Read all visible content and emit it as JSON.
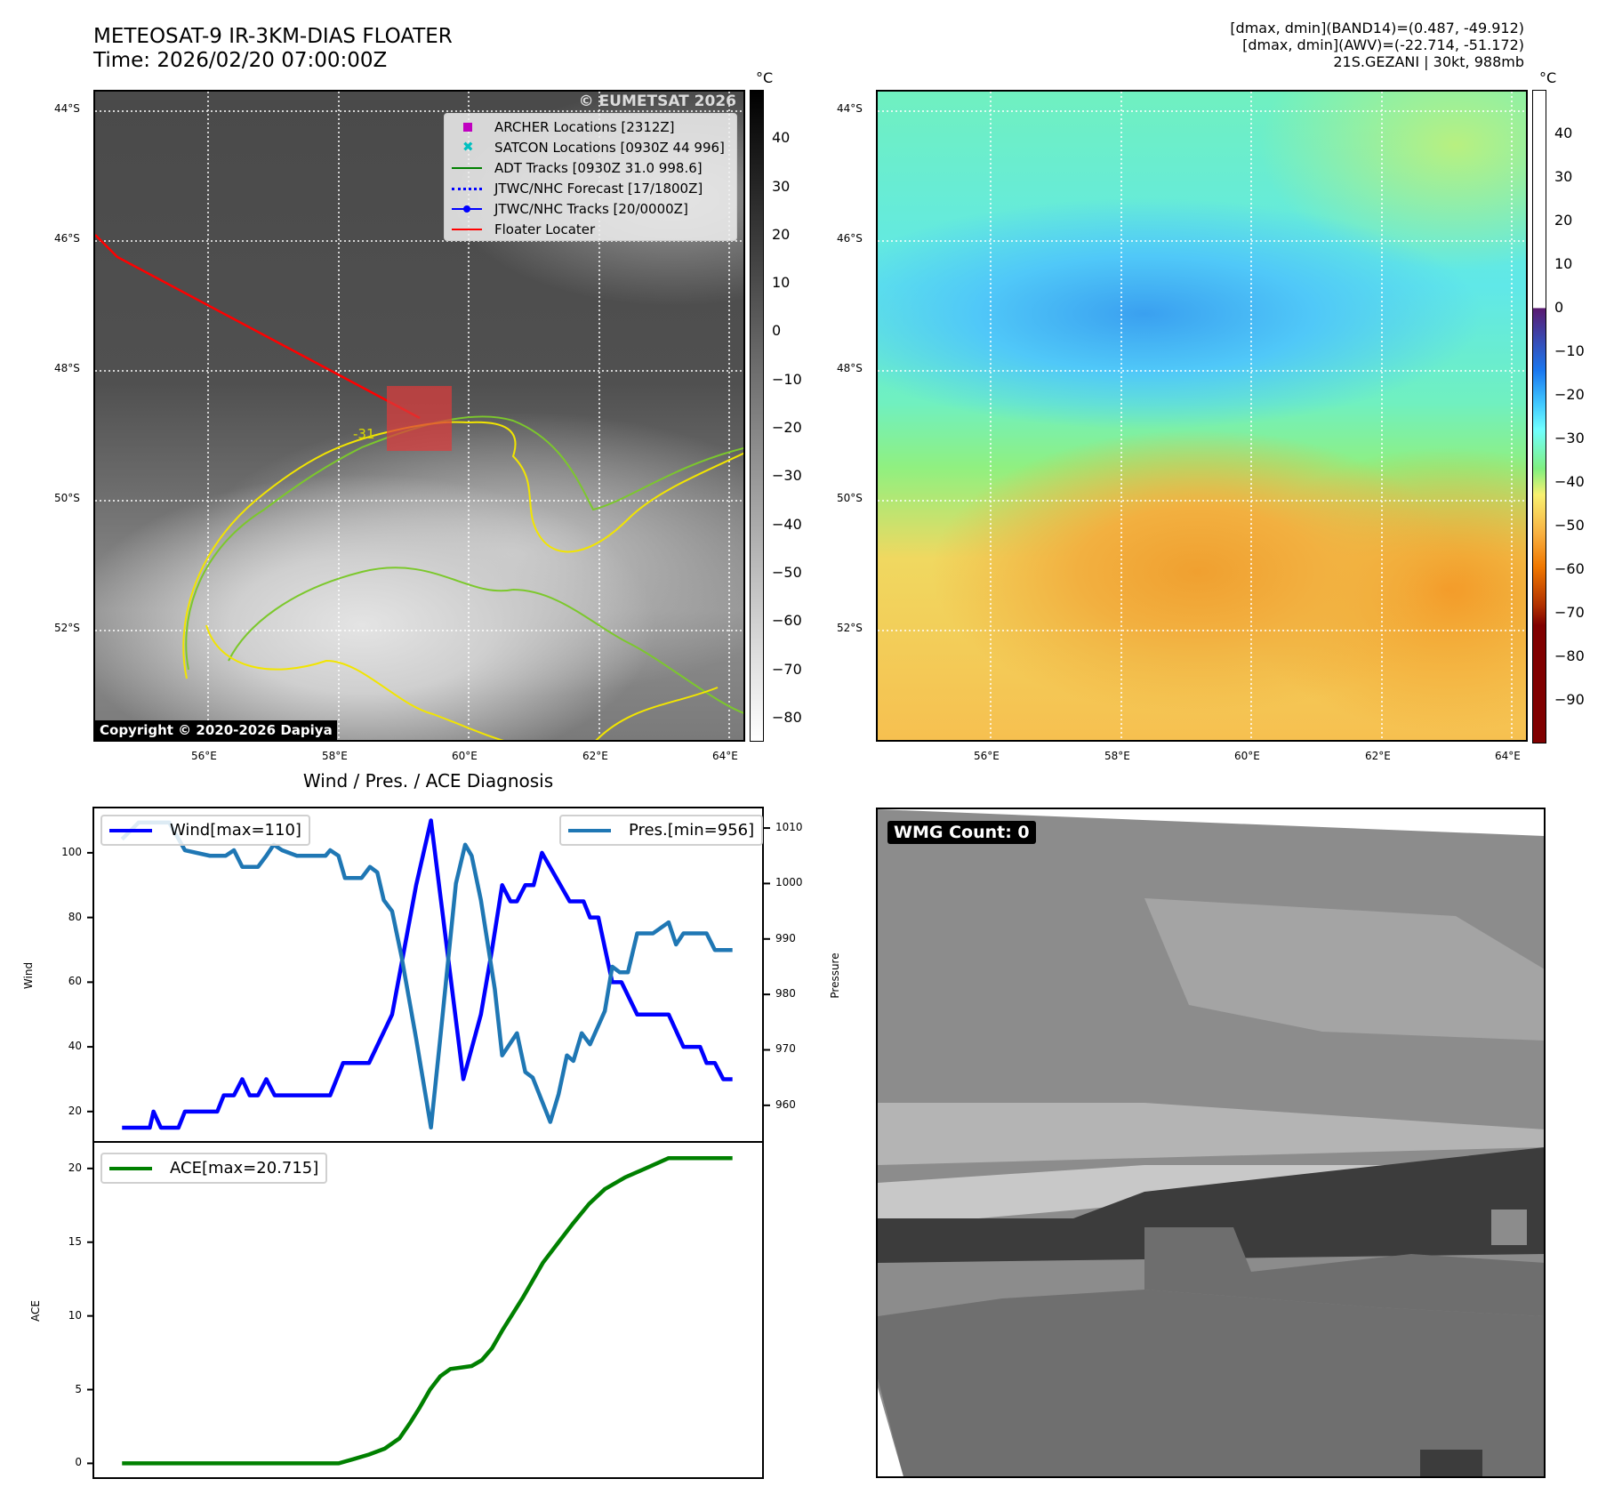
{
  "header": {
    "title": "METEOSAT-9 IR-3KM-DIAS FLOATER",
    "time": "Time: 2026/02/20 07:00:00Z",
    "band14_range": "[dmax, dmin](BAND14)=(0.487, -49.912)",
    "awv_range": "[dmax, dmin](AWV)=(-22.714, -51.172)",
    "storm": "21S.GEZANI | 30kt, 988mb"
  },
  "ir_map": {
    "lat_labels": [
      "44°S",
      "46°S",
      "48°S",
      "50°S",
      "52°S"
    ],
    "lon_labels": [
      "56°E",
      "58°E",
      "60°E",
      "62°E",
      "64°E"
    ],
    "contour_label": "-31",
    "watermark": "© EUMETSAT 2026",
    "copyright": "Copyright © 2020-2026 Dapiya",
    "legend": [
      {
        "label": "ARCHER Locations [2312Z]",
        "color": "#c000c0",
        "symbol": "square"
      },
      {
        "label": "SATCON Locations [0930Z 44 996]",
        "color": "#00c0c0",
        "symbol": "x"
      },
      {
        "label": "ADT Tracks [0930Z 31.0 998.6]",
        "color": "#008000",
        "symbol": "line"
      },
      {
        "label": "JTWC/NHC Forecast [17/1800Z]",
        "color": "#0000ff",
        "symbol": "dotted"
      },
      {
        "label": "JTWC/NHC Tracks [20/0000Z]",
        "color": "#0000ff",
        "symbol": "line-dot"
      },
      {
        "label": "Floater Locater",
        "color": "#ff0000",
        "symbol": "line"
      }
    ],
    "colorbar": {
      "unit": "°C",
      "ticks": [
        "40",
        "30",
        "20",
        "10",
        "0",
        "−10",
        "−20",
        "−30",
        "−40",
        "−50",
        "−60",
        "−70",
        "−80"
      ],
      "range": [
        50,
        -85
      ]
    }
  },
  "awv_map": {
    "lat_labels": [
      "44°S",
      "46°S",
      "48°S",
      "50°S",
      "52°S"
    ],
    "lon_labels": [
      "56°E",
      "58°E",
      "60°E",
      "62°E",
      "64°E"
    ],
    "colorbar": {
      "unit": "°C",
      "ticks": [
        "40",
        "30",
        "20",
        "10",
        "0",
        "−10",
        "−20",
        "−30",
        "−40",
        "−50",
        "−60",
        "−70",
        "−80",
        "−90"
      ],
      "range": [
        50,
        -100
      ]
    }
  },
  "wmg": {
    "label": "WMG Count: 0"
  },
  "chart_data": [
    {
      "type": "line",
      "title": "Wind / Pres. / ACE Diagnosis",
      "ylabel": "Wind",
      "y2label": "Pressure",
      "xlim": [
        -3.1,
        69.3
      ],
      "ylim": [
        10.6,
        114
      ],
      "y2lim": [
        953.4,
        1013.7
      ],
      "yticks": [
        "20",
        "40",
        "60",
        "80",
        "100"
      ],
      "y2ticks": [
        "960",
        "970",
        "980",
        "990",
        "1000",
        "1010"
      ],
      "series": [
        {
          "name": "Wind[max=110]",
          "color": "#0000ff",
          "axis": "left",
          "x": [
            0,
            3,
            3.4,
            4.2,
            6.1,
            6.8,
            10.3,
            11,
            12.1,
            13,
            13.8,
            14.7,
            15.6,
            16.5,
            22.5,
            23.9,
            26.7,
            29.2,
            31.8,
            33.4,
            36.9,
            38.8,
            40,
            41.1,
            42,
            42.7,
            43.6,
            44.5,
            45.4,
            48.4,
            49.9,
            50.6,
            51.5,
            53,
            54,
            55.7,
            59.1,
            60.7,
            62.5,
            63.2,
            64.1,
            65,
            66
          ],
          "y": [
            15,
            15,
            20,
            15,
            15,
            20,
            20,
            25,
            25,
            30,
            25,
            25,
            30,
            25,
            25,
            35,
            35,
            50,
            90,
            110,
            30,
            50,
            70,
            90,
            85,
            85,
            90,
            90,
            100,
            85,
            85,
            80,
            80,
            60,
            60,
            50,
            50,
            40,
            40,
            35,
            35,
            30,
            30
          ]
        },
        {
          "name": "Pres.[min=956]",
          "color": "#1f77b4",
          "axis": "right",
          "x": [
            0,
            1.8,
            5.1,
            6.8,
            9.5,
            11.2,
            12.1,
            13,
            14.7,
            15.6,
            16.4,
            17.3,
            18.9,
            22,
            22.5,
            23.4,
            24.1,
            25.9,
            26.8,
            27.6,
            28.3,
            29.2,
            30.2,
            31.8,
            33.4,
            34.4,
            36.1,
            37.1,
            37.8,
            38.8,
            40.3,
            41.1,
            42.7,
            43.6,
            44.4,
            46.3,
            47.2,
            48.1,
            48.8,
            49.7,
            50.6,
            52.2,
            53,
            53.8,
            54.7,
            55.7,
            57.4,
            59.1,
            59.9,
            60.7,
            63.2,
            64.1,
            66
          ],
          "y": [
            1008,
            1011,
            1011,
            1006,
            1005,
            1005,
            1006,
            1003,
            1003,
            1005,
            1007,
            1006,
            1005,
            1005,
            1006,
            1005,
            1001,
            1001,
            1003,
            1002,
            997,
            995,
            987,
            972,
            956,
            972,
            1000,
            1007,
            1005,
            997,
            981,
            969,
            973,
            966,
            965,
            957,
            962,
            969,
            968,
            973,
            971,
            977,
            985,
            984,
            984,
            991,
            991,
            993,
            989,
            991,
            991,
            988,
            988
          ]
        }
      ]
    },
    {
      "type": "line",
      "ylabel": "ACE",
      "xlim": [
        -3.1,
        69.3
      ],
      "ylim": [
        -1.0,
        21.8
      ],
      "yticks": [
        "0",
        "5",
        "10",
        "15",
        "20"
      ],
      "series": [
        {
          "name": "ACE[max=20.715]",
          "color": "#008000",
          "x": [
            0,
            23.4,
            25.1,
            26.7,
            28.4,
            30,
            31.1,
            32.2,
            33.3,
            34.4,
            35.5,
            36.7,
            37.8,
            38.9,
            40,
            41.1,
            42.2,
            43.3,
            44.4,
            45.5,
            47.2,
            48.8,
            50.5,
            52.2,
            54.4,
            56.6,
            59.1,
            66
          ],
          "y": [
            0,
            0,
            0.3,
            0.6,
            1,
            1.7,
            2.7,
            3.8,
            5,
            5.9,
            6.4,
            6.5,
            6.6,
            7,
            7.8,
            9,
            10.1,
            11.2,
            12.4,
            13.6,
            15,
            16.3,
            17.6,
            18.6,
            19.4,
            20,
            20.7,
            20.7
          ]
        }
      ]
    }
  ]
}
